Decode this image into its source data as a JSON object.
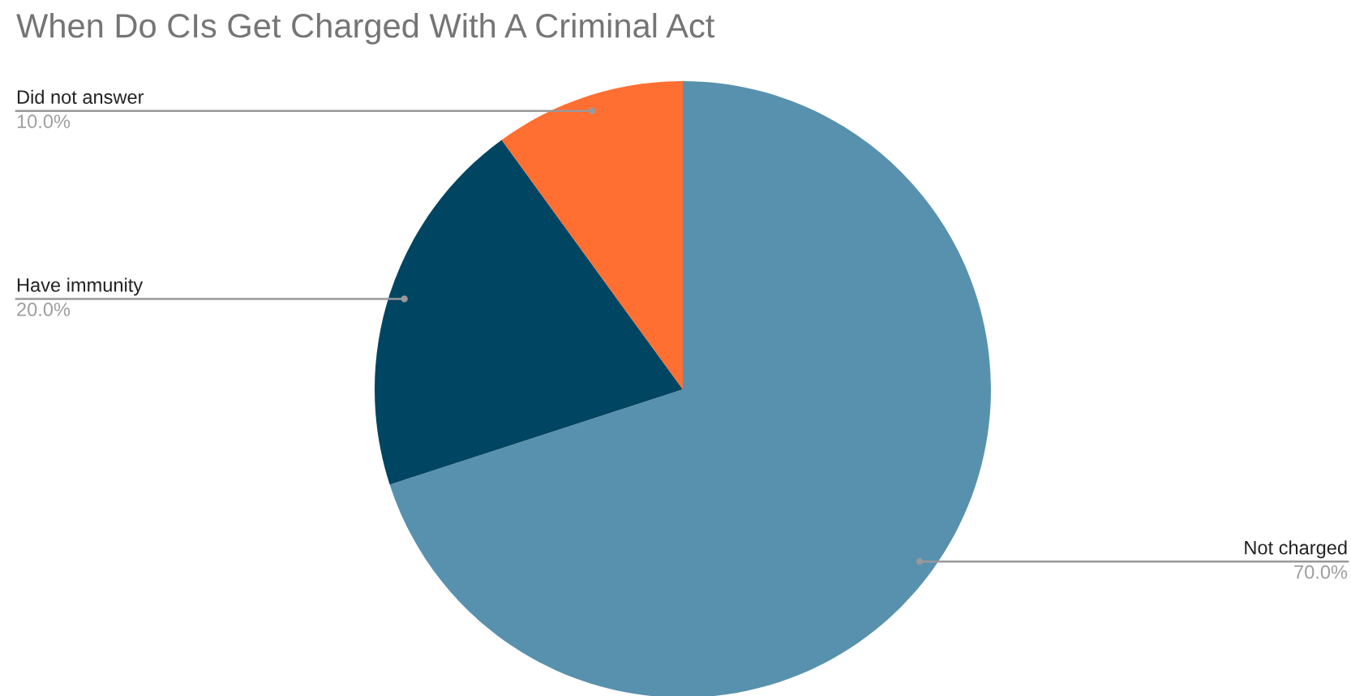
{
  "chart_data": {
    "type": "pie",
    "title": "When Do CIs Get Charged With A Criminal Act",
    "categories": [
      "Not charged",
      "Have immunity",
      "Did not answer"
    ],
    "values": [
      70,
      20,
      10
    ],
    "colors": [
      "#5891ad",
      "#004561",
      "#ff6f31"
    ],
    "value_labels": [
      "70.0%",
      "20.0%",
      "10.0%"
    ]
  }
}
